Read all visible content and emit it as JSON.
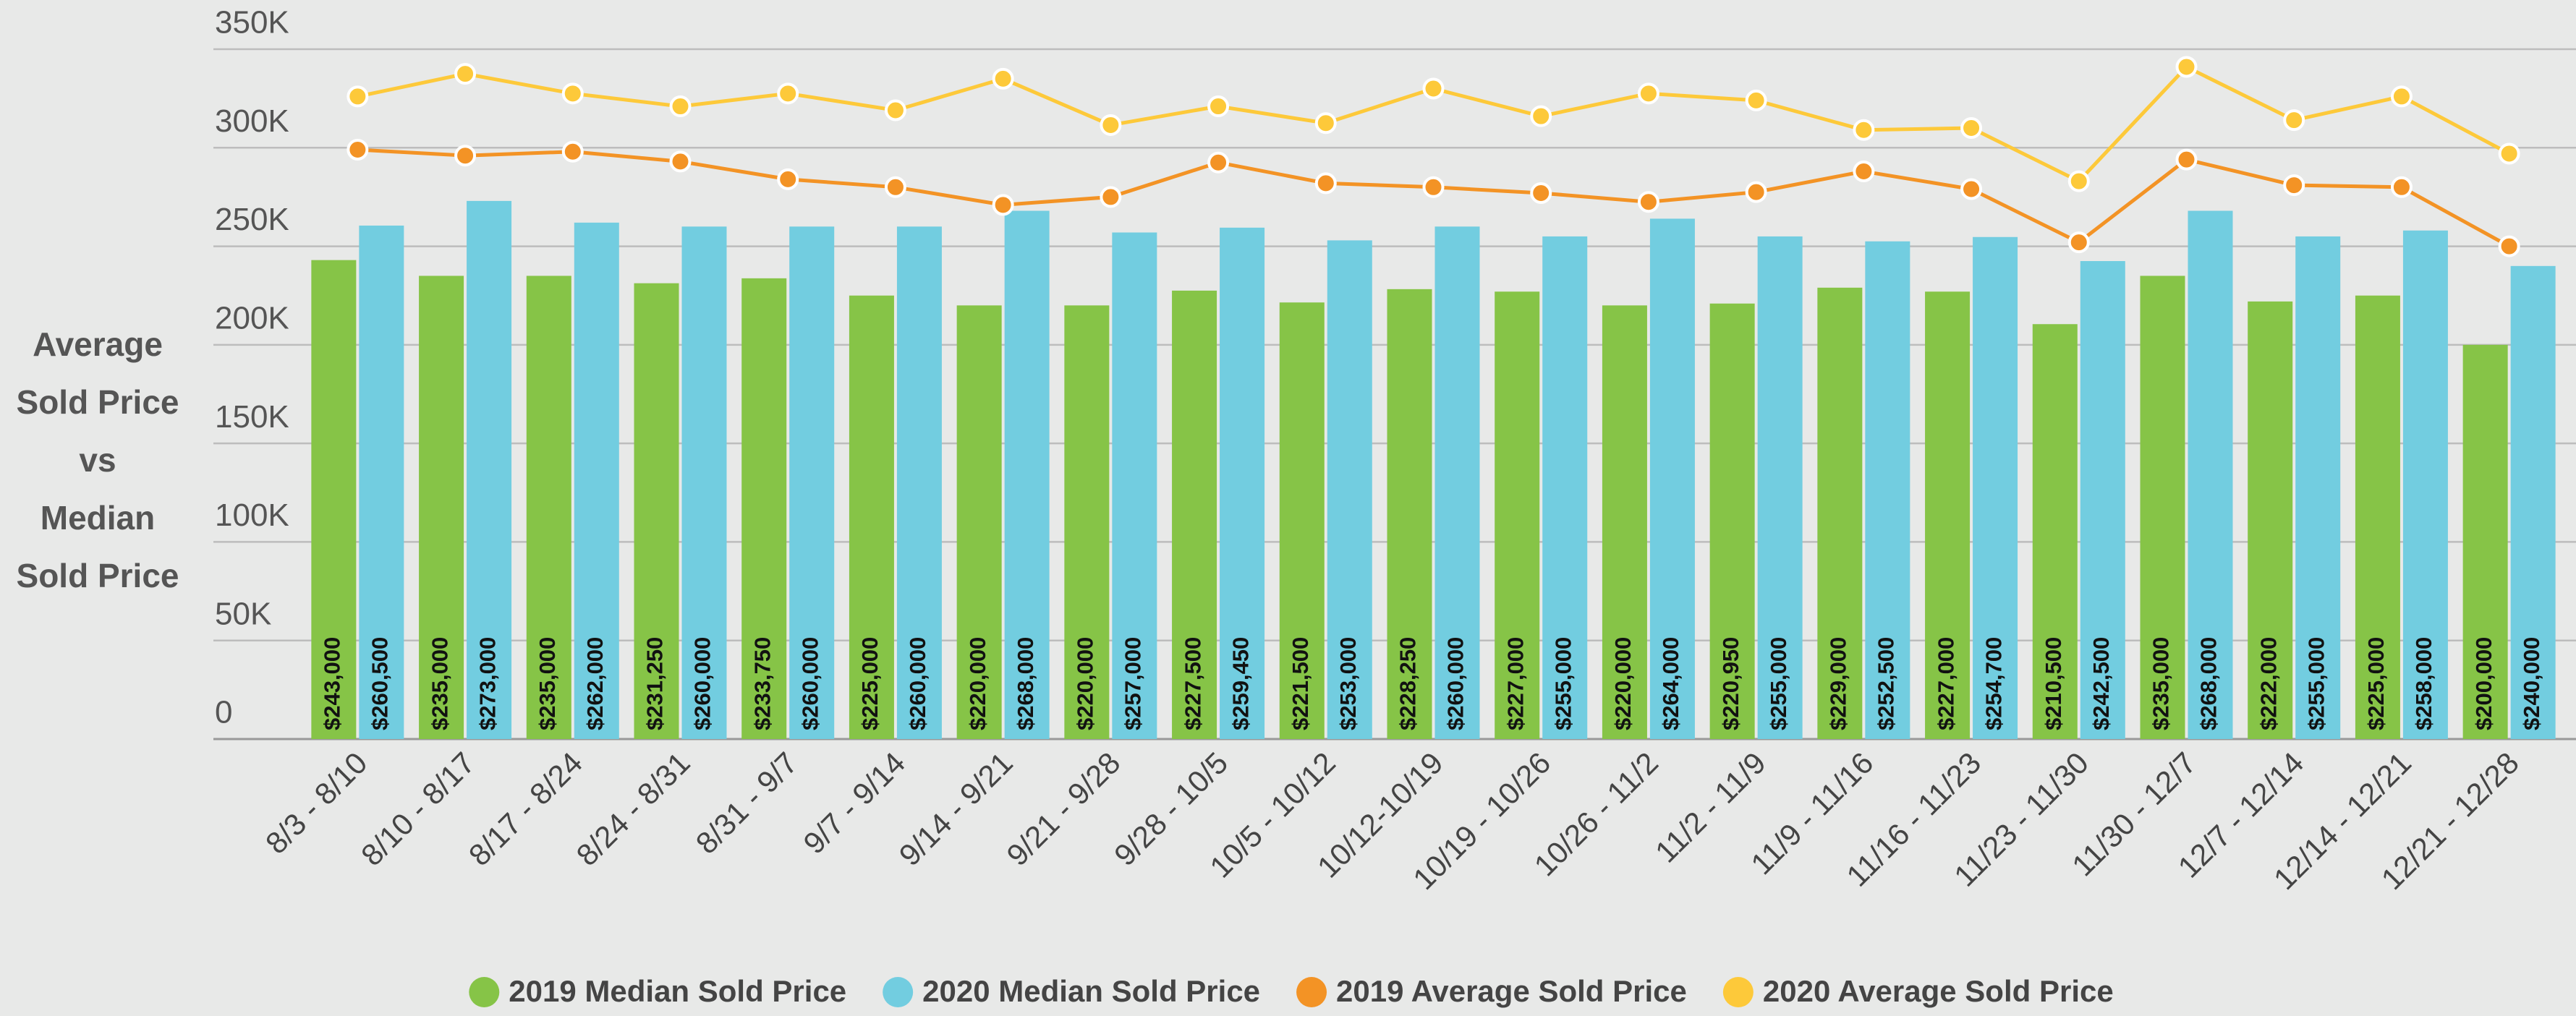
{
  "chart_data": {
    "type": "bar",
    "ylabel": [
      "Average",
      "Sold Price",
      "vs",
      "Median",
      "Sold Price"
    ],
    "categories": [
      "8/3 - 8/10",
      "8/10 - 8/17",
      "8/17 - 8/24",
      "8/24 - 8/31",
      "8/31 - 9/7",
      "9/7 - 9/14",
      "9/14 - 9/21",
      "9/21 - 9/28",
      "9/28 - 10/5",
      "10/5 - 10/12",
      "10/12-10/19",
      "10/19 - 10/26",
      "10/26 - 11/2",
      "11/2 - 11/9",
      "11/9 - 11/16",
      "11/16 - 11/23",
      "11/23 - 11/30",
      "11/30 - 12/7",
      "12/7 - 12/14",
      "12/14 - 12/21",
      "12/21 - 12/28"
    ],
    "series": [
      {
        "name": "2019 Median Sold Price",
        "type": "bar",
        "color": "#86c447",
        "values": [
          243000,
          235000,
          235000,
          231250,
          233750,
          225000,
          220000,
          220000,
          227500,
          221500,
          228250,
          227000,
          220000,
          220950,
          229000,
          227000,
          210500,
          235000,
          222000,
          225000,
          200000
        ],
        "value_labels": [
          "$243,000",
          "$235,000",
          "$235,000",
          "$231,250",
          "$233,750",
          "$225,000",
          "$220,000",
          "$220,000",
          "$227,500",
          "$221,500",
          "$228,250",
          "$227,000",
          "$220,000",
          "$220,950",
          "$229,000",
          "$227,000",
          "$210,500",
          "$235,000",
          "$222,000",
          "$225,000",
          "$200,000"
        ]
      },
      {
        "name": "2020 Median Sold Price",
        "type": "bar",
        "color": "#72cde0",
        "values": [
          260500,
          273000,
          262000,
          260000,
          260000,
          260000,
          268000,
          257000,
          259450,
          253000,
          260000,
          255000,
          264000,
          255000,
          252500,
          254700,
          242500,
          268000,
          255000,
          258000,
          240000
        ],
        "value_labels": [
          "$260,500",
          "$273,000",
          "$262,000",
          "$260,000",
          "$260,000",
          "$260,000",
          "$268,000",
          "$257,000",
          "$259,450",
          "$253,000",
          "$260,000",
          "$255,000",
          "$264,000",
          "$255,000",
          "$252,500",
          "$254,700",
          "$242,500",
          "$268,000",
          "$255,000",
          "$258,000",
          "$240,000"
        ]
      },
      {
        "name": "2019 Average Sold Price",
        "type": "line",
        "color": "#f39325",
        "values": [
          299000,
          296000,
          298000,
          293000,
          284000,
          280000,
          271000,
          275000,
          292500,
          282000,
          280000,
          277000,
          272500,
          277500,
          288000,
          279000,
          252000,
          294000,
          281000,
          280000,
          250000
        ]
      },
      {
        "name": "2020 Average Sold Price",
        "type": "line",
        "color": "#fdc93a",
        "values": [
          326000,
          337500,
          327500,
          321000,
          327500,
          319000,
          335000,
          311500,
          321000,
          312500,
          330000,
          316000,
          327500,
          324000,
          309000,
          310000,
          283000,
          341000,
          314000,
          326000,
          297000
        ]
      }
    ],
    "ylim": [
      0,
      350000
    ],
    "yticks": [
      0,
      {
        "value": 50000,
        "label": "50K"
      },
      {
        "value": 100000,
        "label": "100K"
      },
      {
        "value": 150000,
        "label": "150K"
      },
      {
        "value": 200000,
        "label": "200K"
      },
      {
        "value": 250000,
        "label": "250K"
      },
      {
        "value": 300000,
        "label": "300K"
      },
      {
        "value": 350000,
        "label": "350K"
      }
    ],
    "grid": true,
    "legend": "bottom"
  }
}
